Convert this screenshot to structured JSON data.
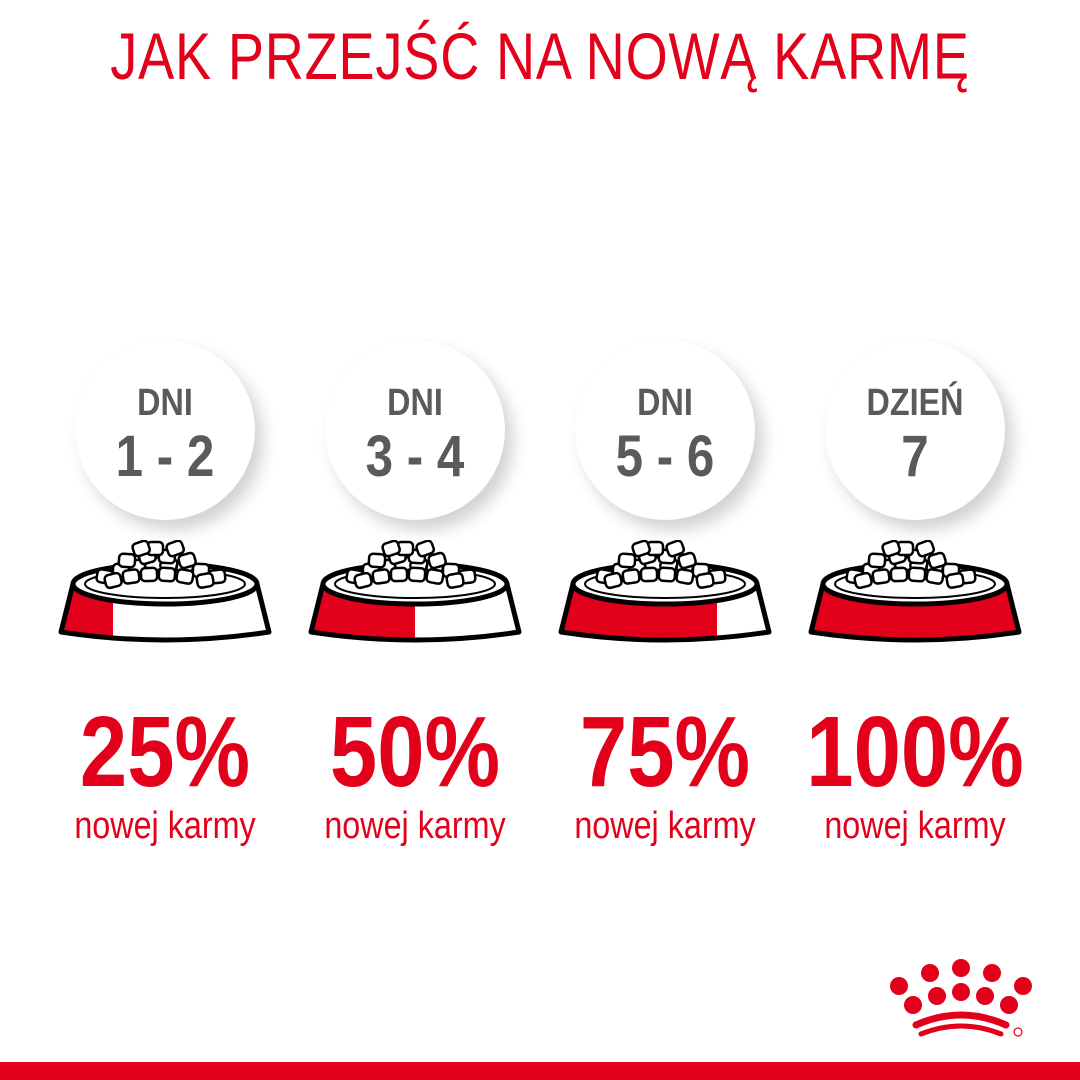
{
  "title": "JAK PRZEJŚĆ NA NOWĄ KARMĘ",
  "accent_color": "#e2001a",
  "steps": [
    {
      "label": "DNI",
      "days": "1 - 2",
      "percent": "25%",
      "fraction": 0.25,
      "caption": "nowej karmy"
    },
    {
      "label": "DNI",
      "days": "3 - 4",
      "percent": "50%",
      "fraction": 0.5,
      "caption": "nowej karmy"
    },
    {
      "label": "DNI",
      "days": "5 - 6",
      "percent": "75%",
      "fraction": 0.75,
      "caption": "nowej karmy"
    },
    {
      "label": "DZIEŃ",
      "days": "7",
      "percent": "100%",
      "fraction": 1.0,
      "caption": "nowej karmy"
    }
  ],
  "logo": {
    "icon": "royal-canin-crown-logo",
    "text": "Royal Canin"
  }
}
